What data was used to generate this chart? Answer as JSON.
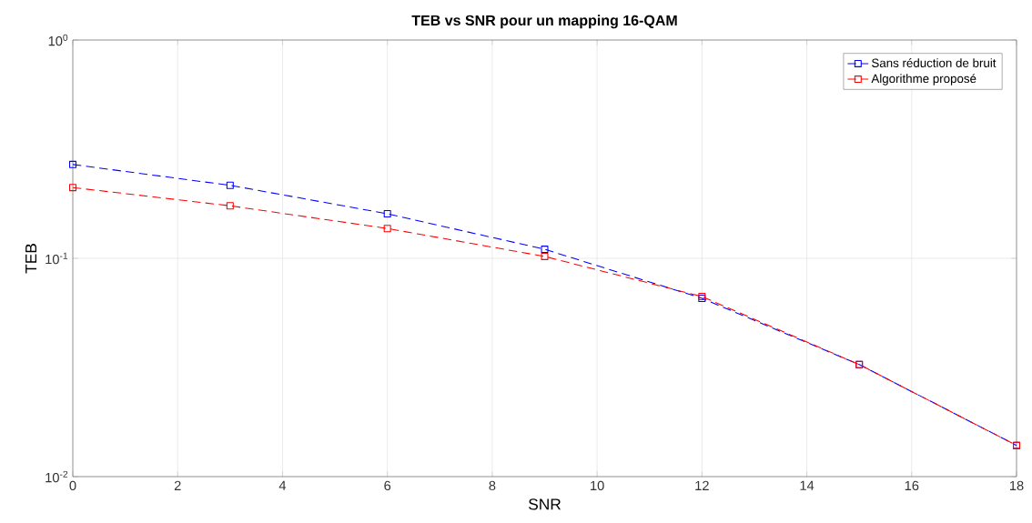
{
  "chart_data": {
    "type": "line",
    "title": "TEB vs SNR pour un mapping 16-QAM",
    "xlabel": "SNR",
    "ylabel": "TEB",
    "x": [
      0,
      3,
      6,
      9,
      12,
      15,
      18
    ],
    "series": [
      {
        "name": "Sans réduction de bruit",
        "color": "#0000ff",
        "values": [
          0.269,
          0.216,
          0.16,
          0.11,
          0.0656,
          0.0326,
          0.0139
        ]
      },
      {
        "name": "Algorithme proposé",
        "color": "#ff0000",
        "values": [
          0.211,
          0.174,
          0.137,
          0.102,
          0.0668,
          0.0326,
          0.0139
        ]
      }
    ],
    "xlim": [
      0,
      18
    ],
    "ylim": [
      0.01,
      1
    ],
    "xticks": [
      0,
      2,
      4,
      6,
      8,
      10,
      12,
      14,
      16,
      18
    ],
    "yticks": [
      {
        "value": 0.01,
        "label": "10$^{-2}$"
      },
      {
        "value": 0.1,
        "label": "10$^{-1}$"
      },
      {
        "value": 1,
        "label": "10$^{0}$"
      }
    ],
    "log": "y",
    "grid": true,
    "legend": "top right",
    "marker": "square",
    "line_style": "dashed"
  }
}
